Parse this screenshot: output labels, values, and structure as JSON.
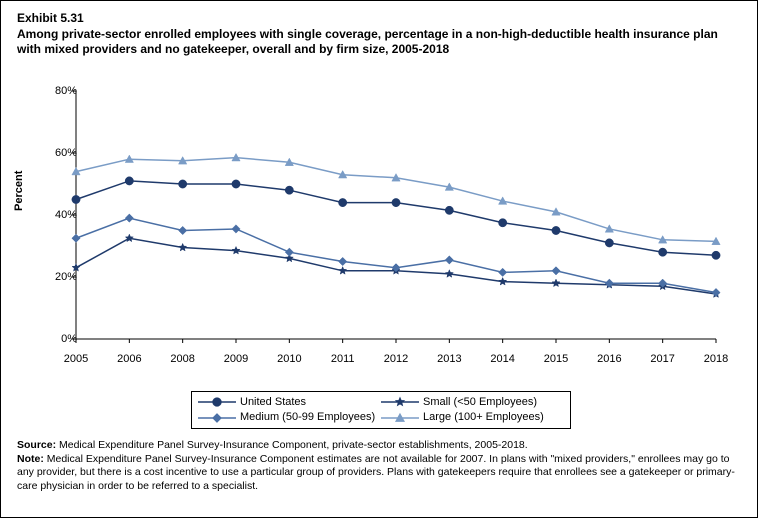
{
  "exhibit_number": "Exhibit 5.31",
  "title": "Among private-sector enrolled employees with single coverage, percentage in a non-high-deductible health insurance plan with mixed providers and no gatekeeper, overall and by firm size, 2005-2018",
  "y_axis_label": "Percent",
  "source_label": "Source:",
  "source_text": " Medical Expenditure Panel Survey-Insurance Component, private-sector establishments, 2005-2018.",
  "note_label": "Note:",
  "note_text": " Medical Expenditure Panel Survey-Insurance Component estimates are not available for 2007. In plans with \"mixed providers,\" enrollees may go to any provider, but there is a cost incentive to use a particular group of providers. Plans with gatekeepers require that enrollees see a gatekeeper or primary-care physician in order to be referred to a specialist.",
  "chart": {
    "type": "line",
    "background_color": "#ffffff",
    "border_color": "#000000",
    "grid_color": "#888888",
    "grid_opacity": 0.0,
    "xlim": [
      2005,
      2018
    ],
    "ylim": [
      0,
      80
    ],
    "ytick_step": 20,
    "yticks": [
      0,
      20,
      40,
      60,
      80
    ],
    "ytick_labels": [
      "0%",
      "20%",
      "40%",
      "60%",
      "80%"
    ],
    "x_categories": [
      "2005",
      "2006",
      "2008",
      "2009",
      "2010",
      "2011",
      "2012",
      "2013",
      "2014",
      "2015",
      "2016",
      "2017",
      "2018"
    ],
    "line_width": 1.5,
    "marker_size": 5,
    "title_fontsize": 12,
    "label_fontsize": 11,
    "tick_fontsize": 11,
    "series": [
      {
        "name": "United States",
        "color": "#1f3a6b",
        "marker": "circle",
        "values": [
          45,
          51,
          50,
          50,
          48,
          44,
          44,
          41.5,
          37.5,
          35,
          31,
          28,
          27
        ]
      },
      {
        "name": "Small (<50 Employees)",
        "color": "#1f3a6b",
        "marker": "star",
        "values": [
          23,
          32.5,
          29.5,
          28.5,
          26,
          22,
          22,
          21,
          18.5,
          18,
          17.5,
          17,
          14.5
        ]
      },
      {
        "name": "Medium (50-99 Employees)",
        "color": "#4a6fa5",
        "marker": "diamond",
        "values": [
          32.5,
          39,
          35,
          35.5,
          28,
          25,
          23,
          25.5,
          21.5,
          22,
          18,
          18,
          15
        ]
      },
      {
        "name": "Large (100+ Employees)",
        "color": "#7a9cc6",
        "marker": "triangle",
        "values": [
          54,
          58,
          57.5,
          58.5,
          57,
          53,
          52,
          49,
          44.5,
          41,
          35.5,
          32,
          31.5
        ]
      }
    ],
    "legend": {
      "rows": [
        [
          0,
          1
        ],
        [
          2,
          3
        ]
      ]
    }
  }
}
